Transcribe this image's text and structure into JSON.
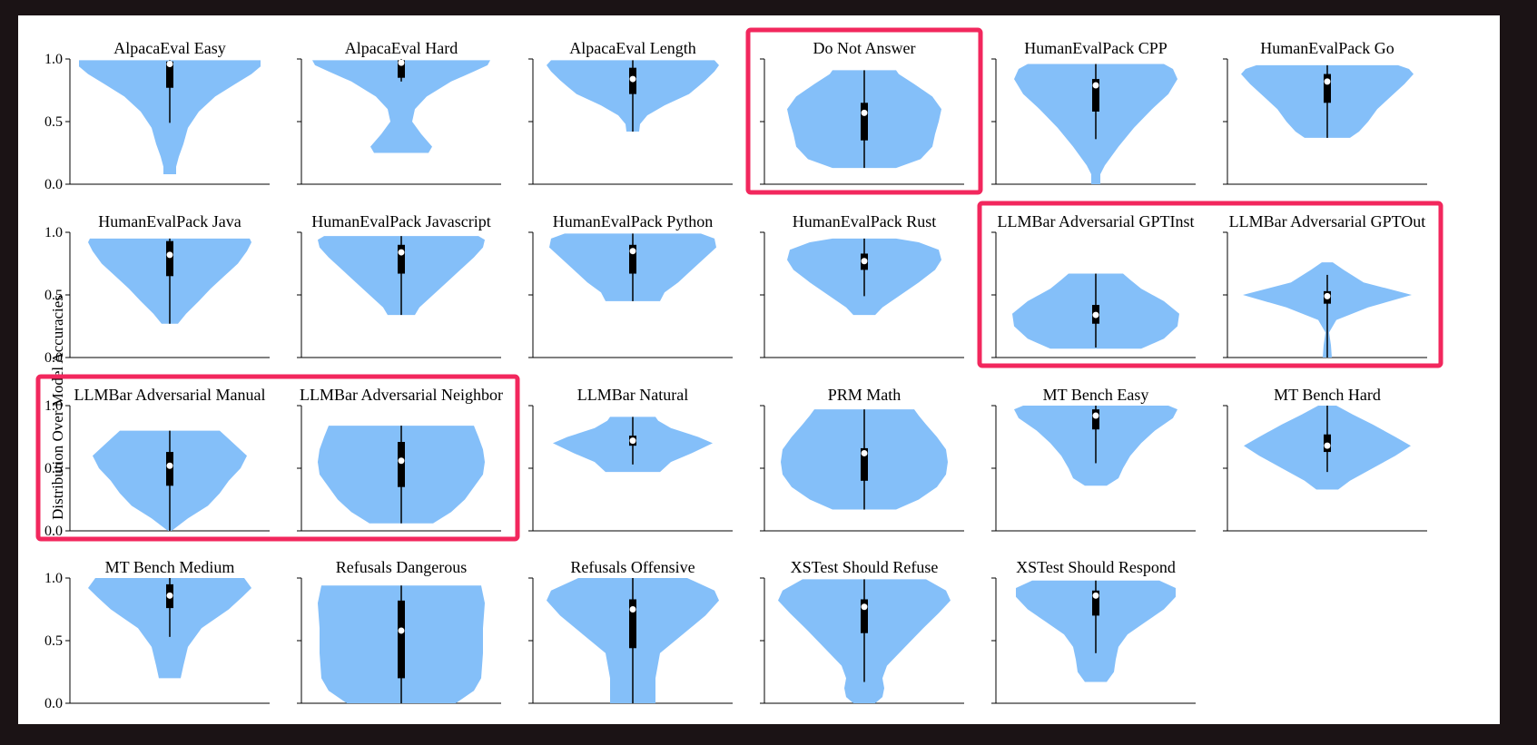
{
  "chart_data": {
    "type": "violin",
    "ylabel": "Distribution Over Model Accuracies",
    "ylim": [
      0,
      1
    ],
    "yticks": [
      "0.0",
      "0.5",
      "1.0"
    ],
    "colors": {
      "violin": "#84bff9",
      "highlight": "#f2275d",
      "box": "#000000",
      "median": "#ffffff"
    },
    "highlight_groups": [
      [
        "Do Not Answer"
      ],
      [
        "LLMBar Adversarial GPTInst",
        "LLMBar Adversarial GPTOut"
      ],
      [
        "LLMBar Adversarial Manual",
        "LLMBar Adversarial Neighbor"
      ]
    ],
    "panels": [
      {
        "title": "AlpacaEval Easy",
        "median": 0.96,
        "q1": 0.77,
        "q3": 0.98,
        "min": 0.49,
        "max": 0.99,
        "profile": [
          [
            0.08,
            0.07
          ],
          [
            0.14,
            0.07
          ],
          [
            0.22,
            0.1
          ],
          [
            0.32,
            0.15
          ],
          [
            0.45,
            0.2
          ],
          [
            0.58,
            0.32
          ],
          [
            0.7,
            0.5
          ],
          [
            0.8,
            0.72
          ],
          [
            0.88,
            0.9
          ],
          [
            0.94,
            1.0
          ],
          [
            0.99,
            1.0
          ]
        ]
      },
      {
        "title": "AlpacaEval Hard",
        "median": 0.97,
        "q1": 0.85,
        "q3": 0.99,
        "min": 0.82,
        "max": 1.0,
        "profile": [
          [
            0.25,
            0.3
          ],
          [
            0.3,
            0.34
          ],
          [
            0.4,
            0.22
          ],
          [
            0.5,
            0.12
          ],
          [
            0.6,
            0.15
          ],
          [
            0.7,
            0.28
          ],
          [
            0.82,
            0.55
          ],
          [
            0.9,
            0.8
          ],
          [
            0.95,
            0.95
          ],
          [
            0.99,
            0.98
          ]
        ]
      },
      {
        "title": "AlpacaEval Length",
        "median": 0.84,
        "q1": 0.72,
        "q3": 0.93,
        "min": 0.42,
        "max": 0.99,
        "profile": [
          [
            0.42,
            0.07
          ],
          [
            0.48,
            0.08
          ],
          [
            0.55,
            0.16
          ],
          [
            0.63,
            0.35
          ],
          [
            0.72,
            0.62
          ],
          [
            0.78,
            0.72
          ],
          [
            0.83,
            0.8
          ],
          [
            0.9,
            0.9
          ],
          [
            0.95,
            0.95
          ],
          [
            0.99,
            0.9
          ]
        ]
      },
      {
        "title": "Do Not Answer",
        "median": 0.57,
        "q1": 0.35,
        "q3": 0.65,
        "min": 0.13,
        "max": 0.91,
        "profile": [
          [
            0.13,
            0.35
          ],
          [
            0.2,
            0.62
          ],
          [
            0.3,
            0.75
          ],
          [
            0.4,
            0.78
          ],
          [
            0.5,
            0.82
          ],
          [
            0.6,
            0.85
          ],
          [
            0.7,
            0.75
          ],
          [
            0.8,
            0.55
          ],
          [
            0.88,
            0.38
          ],
          [
            0.91,
            0.35
          ]
        ]
      },
      {
        "title": "HumanEvalPack CPP",
        "median": 0.79,
        "q1": 0.58,
        "q3": 0.84,
        "min": 0.36,
        "max": 0.96,
        "profile": [
          [
            0.0,
            0.05
          ],
          [
            0.08,
            0.05
          ],
          [
            0.15,
            0.1
          ],
          [
            0.3,
            0.25
          ],
          [
            0.45,
            0.42
          ],
          [
            0.6,
            0.62
          ],
          [
            0.72,
            0.8
          ],
          [
            0.84,
            0.9
          ],
          [
            0.92,
            0.85
          ],
          [
            0.96,
            0.75
          ]
        ]
      },
      {
        "title": "HumanEvalPack Go",
        "median": 0.82,
        "q1": 0.65,
        "q3": 0.88,
        "min": 0.37,
        "max": 0.95,
        "profile": [
          [
            0.37,
            0.25
          ],
          [
            0.42,
            0.35
          ],
          [
            0.5,
            0.45
          ],
          [
            0.6,
            0.55
          ],
          [
            0.7,
            0.7
          ],
          [
            0.8,
            0.85
          ],
          [
            0.88,
            0.95
          ],
          [
            0.92,
            0.9
          ],
          [
            0.95,
            0.78
          ]
        ]
      },
      {
        "title": "HumanEvalPack Java",
        "median": 0.82,
        "q1": 0.65,
        "q3": 0.93,
        "min": 0.27,
        "max": 0.95,
        "profile": [
          [
            0.27,
            0.09
          ],
          [
            0.35,
            0.18
          ],
          [
            0.45,
            0.32
          ],
          [
            0.55,
            0.45
          ],
          [
            0.65,
            0.6
          ],
          [
            0.75,
            0.75
          ],
          [
            0.85,
            0.85
          ],
          [
            0.92,
            0.9
          ],
          [
            0.95,
            0.88
          ]
        ]
      },
      {
        "title": "HumanEvalPack Javascript",
        "median": 0.84,
        "q1": 0.67,
        "q3": 0.9,
        "min": 0.34,
        "max": 0.97,
        "profile": [
          [
            0.34,
            0.15
          ],
          [
            0.4,
            0.2
          ],
          [
            0.5,
            0.35
          ],
          [
            0.6,
            0.5
          ],
          [
            0.7,
            0.65
          ],
          [
            0.8,
            0.8
          ],
          [
            0.88,
            0.9
          ],
          [
            0.94,
            0.92
          ],
          [
            0.97,
            0.85
          ]
        ]
      },
      {
        "title": "HumanEvalPack Python",
        "median": 0.85,
        "q1": 0.67,
        "q3": 0.9,
        "min": 0.45,
        "max": 0.99,
        "profile": [
          [
            0.45,
            0.3
          ],
          [
            0.52,
            0.35
          ],
          [
            0.6,
            0.5
          ],
          [
            0.7,
            0.65
          ],
          [
            0.8,
            0.8
          ],
          [
            0.88,
            0.92
          ],
          [
            0.95,
            0.9
          ],
          [
            0.99,
            0.75
          ]
        ]
      },
      {
        "title": "HumanEvalPack Rust",
        "median": 0.77,
        "q1": 0.7,
        "q3": 0.83,
        "min": 0.49,
        "max": 0.95,
        "profile": [
          [
            0.34,
            0.12
          ],
          [
            0.4,
            0.2
          ],
          [
            0.5,
            0.4
          ],
          [
            0.6,
            0.6
          ],
          [
            0.7,
            0.78
          ],
          [
            0.78,
            0.85
          ],
          [
            0.86,
            0.82
          ],
          [
            0.92,
            0.6
          ],
          [
            0.95,
            0.35
          ]
        ]
      },
      {
        "title": "LLMBar Adversarial GPTInst",
        "median": 0.34,
        "q1": 0.27,
        "q3": 0.42,
        "min": 0.08,
        "max": 0.67,
        "profile": [
          [
            0.07,
            0.5
          ],
          [
            0.15,
            0.75
          ],
          [
            0.25,
            0.9
          ],
          [
            0.35,
            0.92
          ],
          [
            0.45,
            0.75
          ],
          [
            0.55,
            0.5
          ],
          [
            0.62,
            0.38
          ],
          [
            0.67,
            0.3
          ]
        ]
      },
      {
        "title": "LLMBar Adversarial GPTOut",
        "median": 0.49,
        "q1": 0.43,
        "q3": 0.53,
        "min": 0.0,
        "max": 0.66,
        "profile": [
          [
            0.0,
            0.05
          ],
          [
            0.1,
            0.04
          ],
          [
            0.2,
            0.02
          ],
          [
            0.3,
            0.1
          ],
          [
            0.4,
            0.45
          ],
          [
            0.5,
            0.93
          ],
          [
            0.6,
            0.4
          ],
          [
            0.7,
            0.18
          ],
          [
            0.76,
            0.06
          ]
        ]
      },
      {
        "title": "LLMBar Adversarial Manual",
        "median": 0.52,
        "q1": 0.36,
        "q3": 0.63,
        "min": 0.0,
        "max": 0.8,
        "profile": [
          [
            0.0,
            0.02
          ],
          [
            0.1,
            0.2
          ],
          [
            0.2,
            0.42
          ],
          [
            0.3,
            0.55
          ],
          [
            0.4,
            0.65
          ],
          [
            0.5,
            0.78
          ],
          [
            0.6,
            0.85
          ],
          [
            0.7,
            0.7
          ],
          [
            0.8,
            0.55
          ]
        ]
      },
      {
        "title": "LLMBar Adversarial Neighbor",
        "median": 0.56,
        "q1": 0.35,
        "q3": 0.71,
        "min": 0.06,
        "max": 0.84,
        "profile": [
          [
            0.06,
            0.35
          ],
          [
            0.15,
            0.55
          ],
          [
            0.25,
            0.7
          ],
          [
            0.35,
            0.8
          ],
          [
            0.45,
            0.9
          ],
          [
            0.55,
            0.92
          ],
          [
            0.65,
            0.9
          ],
          [
            0.75,
            0.85
          ],
          [
            0.84,
            0.8
          ]
        ]
      },
      {
        "title": "LLMBar Natural",
        "median": 0.72,
        "q1": 0.68,
        "q3": 0.76,
        "min": 0.53,
        "max": 0.91,
        "profile": [
          [
            0.47,
            0.3
          ],
          [
            0.55,
            0.42
          ],
          [
            0.62,
            0.65
          ],
          [
            0.7,
            0.88
          ],
          [
            0.75,
            0.72
          ],
          [
            0.82,
            0.42
          ],
          [
            0.88,
            0.28
          ],
          [
            0.91,
            0.25
          ]
        ]
      },
      {
        "title": "PRM Math",
        "median": 0.62,
        "q1": 0.4,
        "q3": 0.66,
        "min": 0.17,
        "max": 0.97,
        "profile": [
          [
            0.17,
            0.35
          ],
          [
            0.25,
            0.6
          ],
          [
            0.35,
            0.8
          ],
          [
            0.45,
            0.9
          ],
          [
            0.55,
            0.92
          ],
          [
            0.65,
            0.9
          ],
          [
            0.75,
            0.8
          ],
          [
            0.85,
            0.68
          ],
          [
            0.92,
            0.6
          ],
          [
            0.97,
            0.55
          ]
        ]
      },
      {
        "title": "MT Bench Easy",
        "median": 0.92,
        "q1": 0.81,
        "q3": 0.97,
        "min": 0.54,
        "max": 1.0,
        "profile": [
          [
            0.36,
            0.12
          ],
          [
            0.42,
            0.25
          ],
          [
            0.5,
            0.3
          ],
          [
            0.6,
            0.38
          ],
          [
            0.7,
            0.5
          ],
          [
            0.8,
            0.65
          ],
          [
            0.9,
            0.85
          ],
          [
            0.97,
            0.9
          ],
          [
            1.0,
            0.8
          ]
        ]
      },
      {
        "title": "MT Bench Hard",
        "median": 0.68,
        "q1": 0.63,
        "q3": 0.77,
        "min": 0.47,
        "max": 1.0,
        "profile": [
          [
            0.33,
            0.12
          ],
          [
            0.4,
            0.25
          ],
          [
            0.5,
            0.5
          ],
          [
            0.6,
            0.75
          ],
          [
            0.68,
            0.92
          ],
          [
            0.75,
            0.75
          ],
          [
            0.85,
            0.5
          ],
          [
            0.93,
            0.28
          ],
          [
            1.0,
            0.1
          ]
        ]
      },
      {
        "title": "MT Bench Medium",
        "median": 0.86,
        "q1": 0.76,
        "q3": 0.95,
        "min": 0.53,
        "max": 1.0,
        "profile": [
          [
            0.2,
            0.12
          ],
          [
            0.3,
            0.15
          ],
          [
            0.45,
            0.2
          ],
          [
            0.6,
            0.35
          ],
          [
            0.75,
            0.65
          ],
          [
            0.85,
            0.8
          ],
          [
            0.92,
            0.9
          ],
          [
            1.0,
            0.82
          ]
        ]
      },
      {
        "title": "Refusals Dangerous",
        "median": 0.58,
        "q1": 0.2,
        "q3": 0.82,
        "min": 0.0,
        "max": 0.94,
        "profile": [
          [
            0.0,
            0.6
          ],
          [
            0.1,
            0.8
          ],
          [
            0.2,
            0.88
          ],
          [
            0.4,
            0.9
          ],
          [
            0.6,
            0.9
          ],
          [
            0.8,
            0.92
          ],
          [
            0.94,
            0.88
          ]
        ]
      },
      {
        "title": "Refusals Offensive",
        "median": 0.75,
        "q1": 0.44,
        "q3": 0.83,
        "min": 0.0,
        "max": 1.0,
        "profile": [
          [
            0.0,
            0.25
          ],
          [
            0.2,
            0.25
          ],
          [
            0.4,
            0.3
          ],
          [
            0.55,
            0.55
          ],
          [
            0.7,
            0.8
          ],
          [
            0.82,
            0.95
          ],
          [
            0.9,
            0.9
          ],
          [
            1.0,
            0.6
          ]
        ]
      },
      {
        "title": "XSTest Should Refuse",
        "median": 0.77,
        "q1": 0.56,
        "q3": 0.83,
        "min": 0.17,
        "max": 0.99,
        "profile": [
          [
            0.0,
            0.12
          ],
          [
            0.05,
            0.2
          ],
          [
            0.12,
            0.22
          ],
          [
            0.2,
            0.2
          ],
          [
            0.3,
            0.25
          ],
          [
            0.45,
            0.45
          ],
          [
            0.6,
            0.65
          ],
          [
            0.72,
            0.82
          ],
          [
            0.82,
            0.95
          ],
          [
            0.9,
            0.9
          ],
          [
            0.99,
            0.68
          ]
        ]
      },
      {
        "title": "XSTest Should Respond",
        "median": 0.86,
        "q1": 0.7,
        "q3": 0.9,
        "min": 0.4,
        "max": 0.98,
        "profile": [
          [
            0.17,
            0.12
          ],
          [
            0.25,
            0.2
          ],
          [
            0.35,
            0.22
          ],
          [
            0.45,
            0.25
          ],
          [
            0.55,
            0.35
          ],
          [
            0.65,
            0.55
          ],
          [
            0.75,
            0.75
          ],
          [
            0.85,
            0.88
          ],
          [
            0.92,
            0.88
          ],
          [
            0.98,
            0.7
          ]
        ]
      }
    ]
  }
}
